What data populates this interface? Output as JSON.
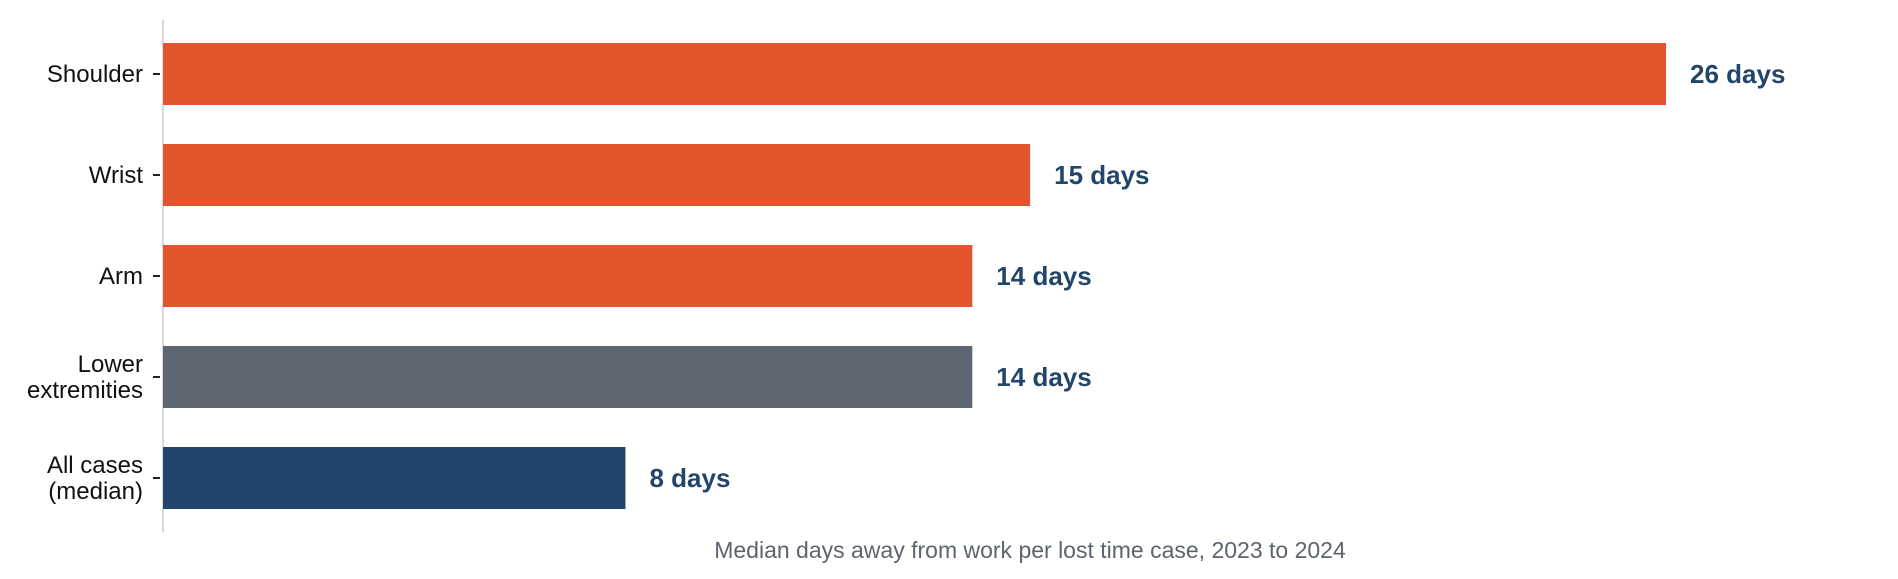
{
  "chart_data": {
    "type": "bar",
    "orientation": "horizontal",
    "categories": [
      "Shoulder",
      "Wrist",
      "Arm",
      "Lower extremities",
      "All cases (median)"
    ],
    "category_lines": [
      [
        "Shoulder"
      ],
      [
        "Wrist"
      ],
      [
        "Arm"
      ],
      [
        "Lower",
        "extremities"
      ],
      [
        "All cases",
        "(median)"
      ]
    ],
    "values": [
      26,
      15,
      14,
      14,
      8
    ],
    "data_labels": [
      "26 days",
      "15 days",
      "14 days",
      "14 days",
      "8 days"
    ],
    "bar_colors": [
      "#e2542b",
      "#e2542b",
      "#e2542b",
      "#5d6570",
      "#22456b"
    ],
    "value_label_color": "#22456b",
    "title": "",
    "xlabel": "Median days away from work per lost time case, 2023 to 2024",
    "ylabel": "",
    "xlim": [
      0,
      26
    ],
    "grid": false,
    "legend": "none"
  }
}
